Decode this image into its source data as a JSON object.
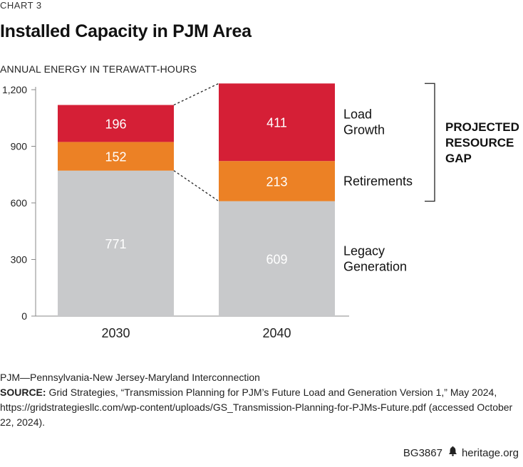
{
  "chart_label": "CHART 3",
  "chart_data": {
    "type": "bar",
    "stacked": true,
    "title": "Installed Capacity in PJM Area",
    "ylabel": "ANNUAL ENERGY IN TERAWATT-HOURS",
    "xlabel": "",
    "ylim": [
      0,
      1200
    ],
    "yticks": [
      0,
      300,
      600,
      900,
      1200
    ],
    "ytick_labels": [
      "0",
      "300",
      "600",
      "900",
      "1,200"
    ],
    "categories": [
      "2030",
      "2040"
    ],
    "series": [
      {
        "name": "Legacy Generation",
        "values": [
          771,
          609
        ],
        "color": "#c8c9cb",
        "label_color": "#ffffff"
      },
      {
        "name": "Retirements",
        "values": [
          152,
          213
        ],
        "color": "#ec8125",
        "label_color": "#ffffff"
      },
      {
        "name": "Load Growth",
        "values": [
          196,
          411
        ],
        "color": "#d51f36",
        "label_color": "#ffffff"
      }
    ],
    "side_labels": [
      {
        "series": "Load Growth",
        "lines": [
          "Load",
          "Growth"
        ]
      },
      {
        "series": "Retirements",
        "lines": [
          "Retirements"
        ]
      },
      {
        "series": "Legacy Generation",
        "lines": [
          "Legacy",
          "Generation"
        ]
      }
    ],
    "annotation": {
      "lines": [
        "PROJECTED",
        "RESOURCE",
        "GAP"
      ]
    }
  },
  "notes": {
    "definition": "PJM—Pennsylvania-New Jersey-Maryland Interconnection",
    "source_label": "SOURCE:",
    "source_text": " Grid Strategies, “Transmission Planning for PJM’s Future Load and Generation Version 1,” May 2024, https://gridstrategiesllc.com/wp-content/uploads/GS_Transmission-Planning-for-PJMs-Future.pdf (accessed October 22, 2024)."
  },
  "footer": {
    "code": "BG3867",
    "icon": "liberty-bell-icon",
    "site": "heritage.org"
  }
}
